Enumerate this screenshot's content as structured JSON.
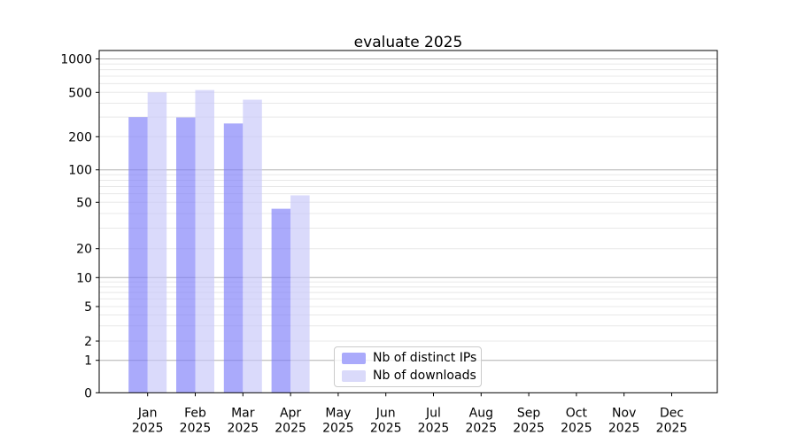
{
  "chart_data": {
    "type": "bar",
    "title": "evaluate 2025",
    "categories": [
      "Jan",
      "Feb",
      "Mar",
      "Apr",
      "May",
      "Jun",
      "Jul",
      "Aug",
      "Sep",
      "Oct",
      "Nov",
      "Dec"
    ],
    "year_label": "2025",
    "series": [
      {
        "key": "distinct-ips",
        "name": "Nb of distinct IPs",
        "values": [
          300,
          298,
          263,
          44,
          0,
          0,
          0,
          0,
          0,
          0,
          0,
          0
        ],
        "color": "#7c7cf9",
        "rendered_color": "#aaaafb"
      },
      {
        "key": "downloads",
        "name": "Nb of downloads",
        "values": [
          500,
          525,
          430,
          58,
          0,
          0,
          0,
          0,
          0,
          0,
          0,
          0
        ],
        "color": "#c6c6f9",
        "rendered_color": "#dadafa"
      }
    ],
    "bar_opacity": 0.65,
    "y_axis": {
      "scale": "symlog",
      "ticks": [
        0,
        1,
        2,
        5,
        10,
        20,
        50,
        100,
        200,
        500,
        1000
      ],
      "range": [
        0,
        1000
      ]
    },
    "x_axis": {
      "tick_count": 12
    },
    "grid": {
      "major_color": "#b0b0b0",
      "minor_color": "#e8e8e8",
      "on": true,
      "which": "both"
    },
    "axis_color": "#000000",
    "background": "#ffffff",
    "legend": {
      "position": "lower center-left",
      "border_color": "#cbcbcb"
    }
  }
}
